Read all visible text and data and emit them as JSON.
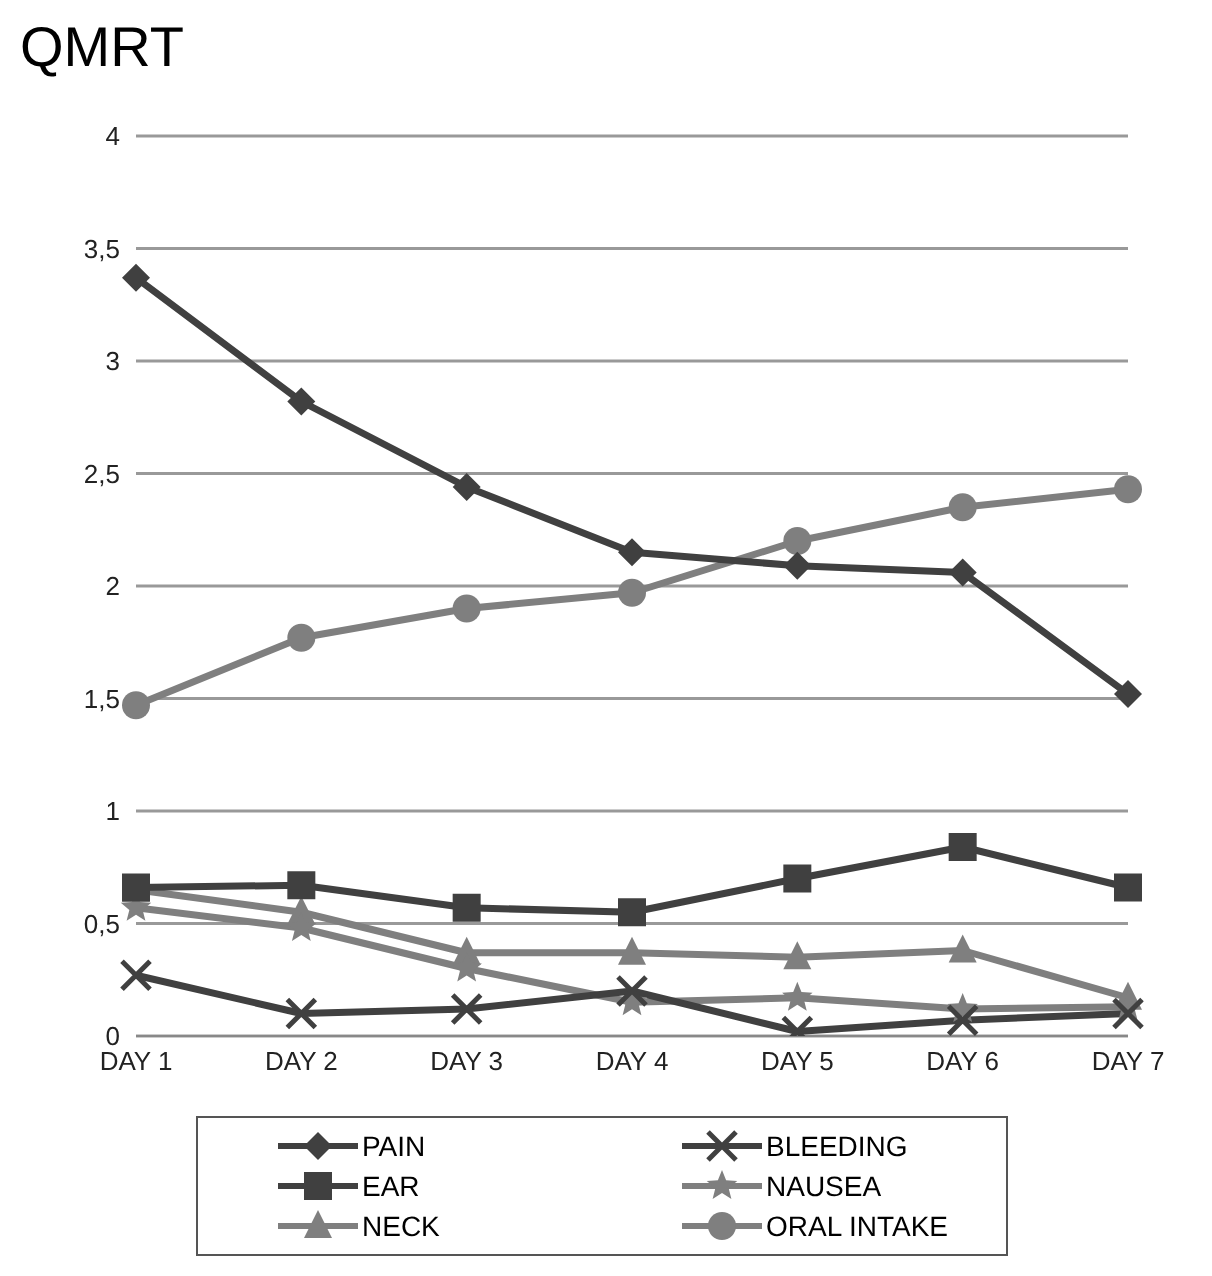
{
  "chart_data": {
    "type": "line",
    "title": "QMRT",
    "categories": [
      "DAY 1",
      "DAY 2",
      "DAY 3",
      "DAY 4",
      "DAY 5",
      "DAY 6",
      "DAY 7"
    ],
    "series": [
      {
        "name": "PAIN",
        "color": "#404040",
        "marker": "diamond",
        "values": [
          3.37,
          2.82,
          2.44,
          2.15,
          2.09,
          2.06,
          1.52
        ]
      },
      {
        "name": "BLEEDING",
        "color": "#404040",
        "marker": "cross",
        "values": [
          0.27,
          0.1,
          0.12,
          0.2,
          0.02,
          0.07,
          0.1
        ]
      },
      {
        "name": "EAR",
        "color": "#404040",
        "marker": "square",
        "values": [
          0.66,
          0.67,
          0.57,
          0.55,
          0.7,
          0.84,
          0.66
        ]
      },
      {
        "name": "NAUSEA",
        "color": "#7f7f7f",
        "marker": "star",
        "values": [
          0.57,
          0.48,
          0.3,
          0.15,
          0.17,
          0.12,
          0.13
        ]
      },
      {
        "name": "NECK",
        "color": "#7f7f7f",
        "marker": "triangle",
        "values": [
          0.65,
          0.55,
          0.37,
          0.37,
          0.35,
          0.38,
          0.17
        ]
      },
      {
        "name": "ORAL INTAKE",
        "color": "#7f7f7f",
        "marker": "circle",
        "values": [
          1.47,
          1.77,
          1.9,
          1.97,
          2.2,
          2.35,
          2.43
        ]
      }
    ],
    "ylim": [
      0,
      4
    ],
    "yticks": [
      0,
      {
        "value": 0.5,
        "label": "0,5"
      },
      1,
      {
        "value": 1.5,
        "label": "1,5"
      },
      2,
      {
        "value": 2.5,
        "label": "2,5"
      },
      3,
      {
        "value": 3.5,
        "label": "3,5"
      },
      4
    ],
    "grid": "y",
    "legend": "bottom",
    "line_style": "solid"
  }
}
